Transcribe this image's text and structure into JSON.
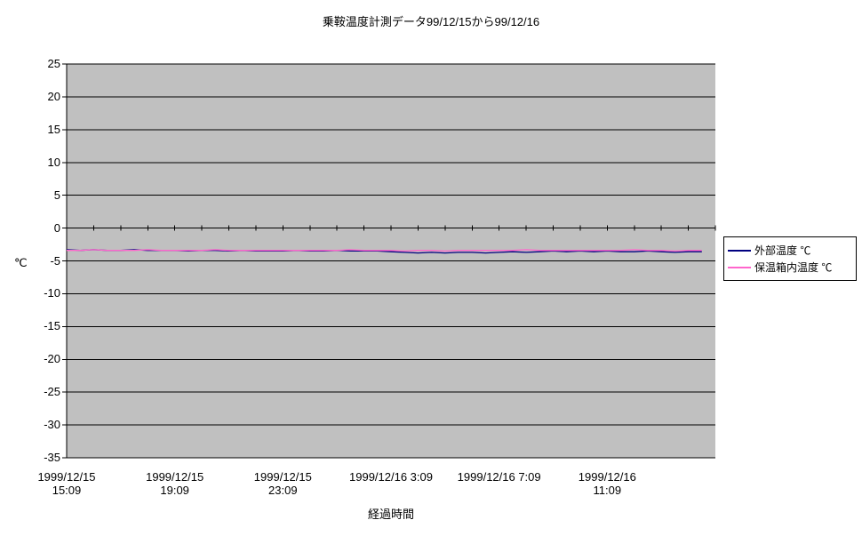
{
  "chart_data": {
    "type": "line",
    "title": "乗鞍温度計測データ99/12/15から99/12/16",
    "xlabel": "経過時間",
    "ylabel": "℃",
    "ylim": [
      -35,
      25
    ],
    "y_tick_step": 5,
    "y_ticks": [
      25,
      20,
      15,
      10,
      5,
      0,
      -5,
      -10,
      -15,
      -20,
      -25,
      -30,
      -35
    ],
    "x_span_hours": 24,
    "x_interval_hours": 0.5,
    "grid": true,
    "legend_position": "right",
    "plot_bg": "#c0c0c0",
    "colors": {
      "grid": "#000000",
      "axis": "#000000"
    },
    "x_tick_labels": [
      {
        "hour": 0,
        "line1": "1999/12/15",
        "line2": "15:09"
      },
      {
        "hour": 4,
        "line1": "1999/12/15",
        "line2": "19:09"
      },
      {
        "hour": 8,
        "line1": "1999/12/15",
        "line2": "23:09"
      },
      {
        "hour": 12,
        "line1": "1999/12/16 3:09",
        "line2": ""
      },
      {
        "hour": 16,
        "line1": "1999/12/16 7:09",
        "line2": ""
      },
      {
        "hour": 20,
        "line1": "1999/12/16",
        "line2": "11:09"
      }
    ],
    "categories": [
      "1999/12/15 15:09",
      "1999/12/15 15:39",
      "1999/12/15 16:09",
      "1999/12/15 16:39",
      "1999/12/15 17:09",
      "1999/12/15 17:39",
      "1999/12/15 18:09",
      "1999/12/15 18:39",
      "1999/12/15 19:09",
      "1999/12/15 19:39",
      "1999/12/15 20:09",
      "1999/12/15 20:39",
      "1999/12/15 21:09",
      "1999/12/15 21:39",
      "1999/12/15 22:09",
      "1999/12/15 22:39",
      "1999/12/15 23:09",
      "1999/12/15 23:39",
      "1999/12/16 0:09",
      "1999/12/16 0:39",
      "1999/12/16 1:09",
      "1999/12/16 1:39",
      "1999/12/16 2:09",
      "1999/12/16 2:39",
      "1999/12/16 3:09",
      "1999/12/16 3:39",
      "1999/12/16 4:09",
      "1999/12/16 4:39",
      "1999/12/16 5:09",
      "1999/12/16 5:39",
      "1999/12/16 6:09",
      "1999/12/16 6:39",
      "1999/12/16 7:09",
      "1999/12/16 7:39",
      "1999/12/16 8:09",
      "1999/12/16 8:39",
      "1999/12/16 9:09",
      "1999/12/16 9:39",
      "1999/12/16 10:09",
      "1999/12/16 10:39",
      "1999/12/16 11:09",
      "1999/12/16 11:39",
      "1999/12/16 12:09",
      "1999/12/16 12:39",
      "1999/12/16 13:09",
      "1999/12/16 13:39",
      "1999/12/16 14:09",
      "1999/12/16 14:39"
    ],
    "series": [
      {
        "name": "外部温度 ℃",
        "color": "#000080",
        "values": [
          -3.3,
          -3.4,
          -3.3,
          -3.4,
          -3.4,
          -3.3,
          -3.4,
          -3.4,
          -3.4,
          -3.5,
          -3.4,
          -3.4,
          -3.5,
          -3.4,
          -3.5,
          -3.5,
          -3.5,
          -3.4,
          -3.5,
          -3.5,
          -3.4,
          -3.5,
          -3.5,
          -3.5,
          -3.6,
          -3.7,
          -3.8,
          -3.7,
          -3.8,
          -3.7,
          -3.7,
          -3.8,
          -3.7,
          -3.6,
          -3.7,
          -3.6,
          -3.5,
          -3.6,
          -3.5,
          -3.6,
          -3.5,
          -3.6,
          -3.6,
          -3.5,
          -3.6,
          -3.7,
          -3.6,
          -3.6
        ]
      },
      {
        "name": "保温箱内温度 ℃",
        "color": "#ff66cc",
        "values": [
          -3.4,
          -3.4,
          -3.3,
          -3.4,
          -3.4,
          -3.4,
          -3.3,
          -3.4,
          -3.4,
          -3.4,
          -3.4,
          -3.3,
          -3.4,
          -3.4,
          -3.4,
          -3.4,
          -3.4,
          -3.4,
          -3.4,
          -3.4,
          -3.4,
          -3.3,
          -3.4,
          -3.4,
          -3.4,
          -3.5,
          -3.4,
          -3.4,
          -3.5,
          -3.4,
          -3.4,
          -3.4,
          -3.4,
          -3.4,
          -3.3,
          -3.4,
          -3.4,
          -3.4,
          -3.4,
          -3.4,
          -3.4,
          -3.4,
          -3.3,
          -3.4,
          -3.4,
          -3.5,
          -3.4,
          -3.4
        ]
      }
    ]
  }
}
